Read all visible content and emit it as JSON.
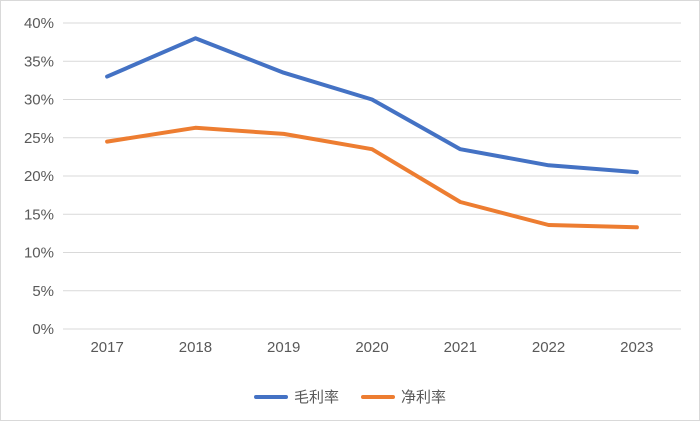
{
  "chart_data": {
    "type": "line",
    "title": "",
    "xlabel": "",
    "ylabel": "",
    "categories": [
      "2017",
      "2018",
      "2019",
      "2020",
      "2021",
      "2022",
      "2023"
    ],
    "series": [
      {
        "name": "毛利率",
        "color": "#4472C4",
        "values": [
          33.0,
          38.0,
          33.5,
          30.0,
          23.5,
          21.4,
          20.5
        ]
      },
      {
        "name": "净利率",
        "color": "#ED7D31",
        "values": [
          24.5,
          26.3,
          25.5,
          23.5,
          16.6,
          13.6,
          13.3
        ]
      }
    ],
    "ylim": [
      0,
      40
    ],
    "ytick_step": 5,
    "ytick_suffix": "%",
    "ytick_labels": [
      "0%",
      "5%",
      "10%",
      "15%",
      "20%",
      "25%",
      "30%",
      "35%",
      "40%"
    ],
    "grid": true,
    "legend_position": "bottom",
    "colors": {
      "grid": "#D9D9D9",
      "axis_text": "#595959",
      "border": "#D9D9D9",
      "background": "#FFFFFF"
    }
  }
}
